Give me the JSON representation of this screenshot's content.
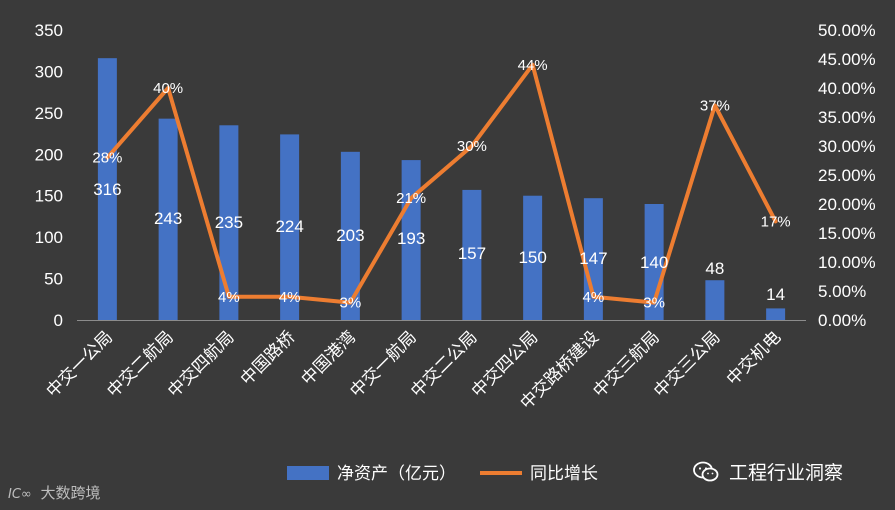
{
  "chart_data": {
    "type": "bar+line",
    "categories": [
      "中交一公局",
      "中交二航局",
      "中交四航局",
      "中国路桥",
      "中国港湾",
      "中交一航局",
      "中交二公局",
      "中交四公局",
      "中交路桥建设",
      "中交三航局",
      "中交三公局",
      "中交机电"
    ],
    "series": [
      {
        "name": "净资产（亿元）",
        "type": "bar",
        "axis": "left",
        "color": "#4472c4",
        "values": [
          316,
          243,
          235,
          224,
          203,
          193,
          157,
          150,
          147,
          140,
          48,
          14
        ],
        "labels": [
          "316",
          "243",
          "235",
          "224",
          "203",
          "193",
          "157",
          "150",
          "147",
          "140",
          "48",
          "14"
        ]
      },
      {
        "name": "同比增长",
        "type": "line",
        "axis": "right",
        "color": "#ed7d31",
        "values": [
          28,
          40,
          4,
          4,
          3,
          21,
          30,
          44,
          4,
          3,
          37,
          17
        ],
        "labels": [
          "28%",
          "40%",
          "4%",
          "4%",
          "3%",
          "21%",
          "30%",
          "44%",
          "4%",
          "3%",
          "37%",
          "17%"
        ]
      }
    ],
    "y_left": {
      "range": [
        0,
        350
      ],
      "ticks": [
        "0",
        "50",
        "100",
        "150",
        "200",
        "250",
        "300",
        "350"
      ]
    },
    "y_right": {
      "range": [
        0,
        50
      ],
      "ticks": [
        "0.00%",
        "5.00%",
        "10.00%",
        "15.00%",
        "20.00%",
        "25.00%",
        "30.00%",
        "35.00%",
        "40.00%",
        "45.00%",
        "50.00%"
      ]
    },
    "grid": false,
    "legend": "bottom"
  },
  "watermark": {
    "logo": "ⅠC∞",
    "text": "大数跨境"
  },
  "brand": {
    "text": "工程行业洞察",
    "icon": "wechat-icon"
  }
}
